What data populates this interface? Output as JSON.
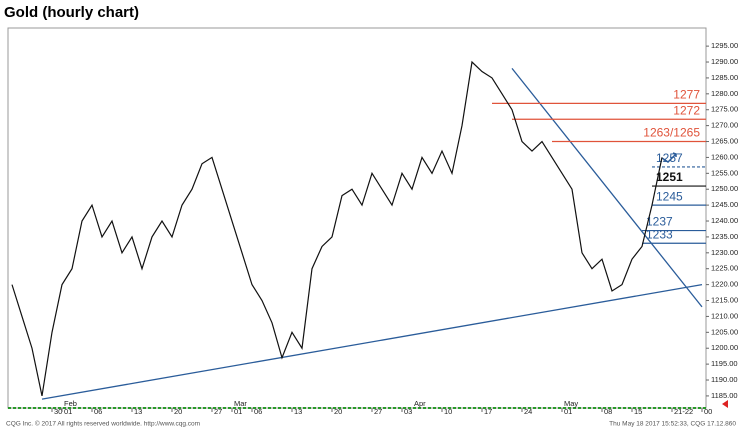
{
  "chart_data": {
    "type": "line",
    "title": "Gold (hourly chart)",
    "footer_left": "CQG Inc. © 2017 All rights reserved worldwide. http://www.cqg.com",
    "footer_right": "Thu May 18 2017 15:52:33, CQG 17.12.860",
    "categories": [
      null,
      null,
      null,
      null,
      "30",
      "01",
      null,
      null,
      "06",
      null,
      null,
      null,
      "13",
      null,
      null,
      null,
      "20",
      null,
      null,
      null,
      "27",
      null,
      "01",
      null,
      "06",
      null,
      null,
      null,
      "13",
      null,
      null,
      null,
      "20",
      null,
      null,
      null,
      "27",
      null,
      null,
      "03",
      null,
      null,
      null,
      "10",
      null,
      null,
      null,
      "17",
      null,
      null,
      null,
      "24",
      null,
      null,
      null,
      "01",
      null,
      null,
      null,
      "08",
      null,
      null,
      "15",
      null,
      null,
      null,
      "21-22",
      null,
      null,
      "00"
    ],
    "months": [
      {
        "label": "Feb",
        "category": 5
      },
      {
        "label": "Mar",
        "category": 22
      },
      {
        "label": "Apr",
        "category": 40
      },
      {
        "label": "May",
        "category": 55
      }
    ],
    "series": [
      {
        "name": "Gold",
        "color": "#111111",
        "values": [
          1220,
          1210,
          1200,
          1185,
          1205,
          1220,
          1225,
          1240,
          1245,
          1235,
          1240,
          1230,
          1235,
          1225,
          1235,
          1240,
          1235,
          1245,
          1250,
          1258,
          1260,
          1250,
          1240,
          1230,
          1220,
          1215,
          1208,
          1197,
          1205,
          1200,
          1225,
          1232,
          1235,
          1248,
          1250,
          1245,
          1255,
          1250,
          1245,
          1255,
          1250,
          1260,
          1255,
          1262,
          1255,
          1270,
          1290,
          1287,
          1285,
          1280,
          1275,
          1265,
          1262,
          1265,
          1260,
          1255,
          1250,
          1230,
          1225,
          1228,
          1218,
          1220,
          1228,
          1232,
          1245,
          1260,
          null,
          null,
          null,
          null
        ]
      }
    ],
    "levels": [
      {
        "value": 1277,
        "label": "1277",
        "color": "#e0533a"
      },
      {
        "value": 1272,
        "label": "1272",
        "color": "#e0533a"
      },
      {
        "value": 1265,
        "label": "1263/1265",
        "color": "#e0533a"
      },
      {
        "value": 1257,
        "label": "1257",
        "color": "#2a5c9a"
      },
      {
        "value": 1251,
        "label": "1251",
        "color": "#111111"
      },
      {
        "value": 1245,
        "label": "1245",
        "color": "#2a5c9a"
      },
      {
        "value": 1237,
        "label": "1237",
        "color": "#2a5c9a"
      },
      {
        "value": 1233,
        "label": "1233",
        "color": "#2a5c9a"
      }
    ],
    "trendlines": [
      {
        "color": "#2a5c9a",
        "from": [
          3,
          1184
        ],
        "to": [
          69,
          1220
        ]
      },
      {
        "color": "#2a5c9a",
        "from": [
          50,
          1288
        ],
        "to": [
          69,
          1213
        ]
      }
    ],
    "ylim": [
      1181.2,
      1300.7
    ],
    "yticks": [
      {
        "value": 1185,
        "label": "1185.00"
      },
      {
        "value": 1190,
        "label": "1190.00"
      },
      {
        "value": 1195,
        "label": "1195.00"
      },
      {
        "value": 1200,
        "label": "1200.00"
      },
      {
        "value": 1205,
        "label": "1205.00"
      },
      {
        "value": 1210,
        "label": "1210.00"
      },
      {
        "value": 1215,
        "label": "1215.00"
      },
      {
        "value": 1220,
        "label": "1220.00"
      },
      {
        "value": 1225,
        "label": "1225.00"
      },
      {
        "value": 1230,
        "label": "1230.00"
      },
      {
        "value": 1235,
        "label": "1235.00"
      },
      {
        "value": 1240,
        "label": "1240.00"
      },
      {
        "value": 1245,
        "label": "1245.00"
      },
      {
        "value": 1250,
        "label": "1250.00"
      },
      {
        "value": 1255,
        "label": "1255.00"
      },
      {
        "value": 1260,
        "label": "1260.00"
      },
      {
        "value": 1265,
        "label": "1265.00"
      },
      {
        "value": 1270,
        "label": "1270.00"
      },
      {
        "value": 1275,
        "label": "1275.00"
      },
      {
        "value": 1280,
        "label": "1280.00"
      },
      {
        "value": 1285,
        "label": "1285.00"
      },
      {
        "value": 1290,
        "label": "1290.00"
      },
      {
        "value": 1295,
        "label": "1295.00"
      }
    ]
  }
}
